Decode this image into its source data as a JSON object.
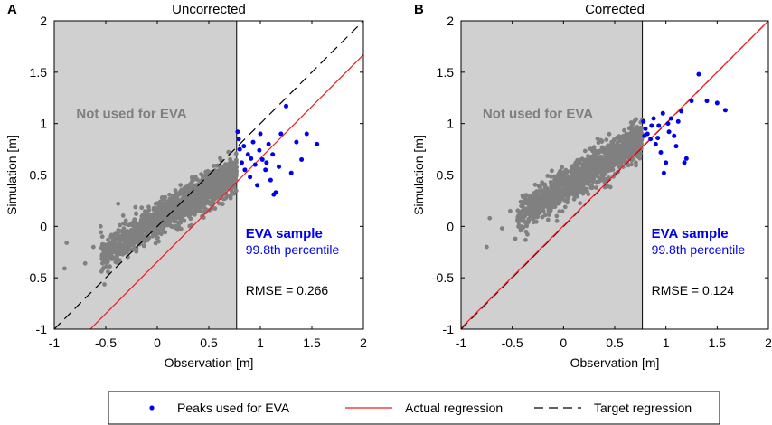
{
  "colors": {
    "scatter": "#808080",
    "peaks": "#0000ee",
    "actual": "#ee1c1c",
    "target": "#000000",
    "shade": "#d0d0d0",
    "eva_text": "#0000ee"
  },
  "legend": {
    "peaks_label": "Peaks used for EVA",
    "actual_label": "Actual regression",
    "target_label": "Target regression"
  },
  "chart_data": [
    {
      "type": "scatter",
      "panel_label": "A",
      "title": "Uncorrected",
      "xlabel": "Observation [m]",
      "ylabel": "Simulation [m]",
      "xlim": [
        -1,
        2
      ],
      "ylim": [
        -1,
        2
      ],
      "xticks": [
        "-1",
        "-0.5",
        "0",
        "0.5",
        "1",
        "1.5",
        "2"
      ],
      "yticks": [
        "-1",
        "-0.5",
        "0",
        "0.5",
        "1",
        "1.5",
        "2"
      ],
      "threshold_x": 0.77,
      "region_label": "Not used for EVA",
      "eva_label": "EVA sample",
      "eva_sub": "99.8th percentile",
      "rmse": "RMSE = 0.266",
      "actual_regression": {
        "x": [
          -0.65,
          2.0
        ],
        "y": [
          -1.0,
          1.67
        ]
      },
      "target_regression": {
        "x": [
          -1,
          2
        ],
        "y": [
          -1,
          2
        ]
      },
      "bulk_cloud": {
        "slope": 0.62,
        "intercept": 0.05,
        "x_range": [
          -0.55,
          0.77
        ]
      },
      "scatter_outliers": [
        {
          "x": -0.88,
          "y": -0.16
        },
        {
          "x": -0.9,
          "y": -0.41
        },
        {
          "x": -0.7,
          "y": -0.36
        },
        {
          "x": -0.62,
          "y": -0.2
        },
        {
          "x": -0.55,
          "y": 0.0
        },
        {
          "x": -0.5,
          "y": -0.28
        },
        {
          "x": -0.45,
          "y": -0.1
        },
        {
          "x": -0.38,
          "y": 0.22
        }
      ],
      "peaks": [
        {
          "x": 0.78,
          "y": 0.92
        },
        {
          "x": 0.8,
          "y": 0.75
        },
        {
          "x": 0.82,
          "y": 0.62
        },
        {
          "x": 0.85,
          "y": 0.55
        },
        {
          "x": 0.88,
          "y": 0.7
        },
        {
          "x": 0.9,
          "y": 0.48
        },
        {
          "x": 0.93,
          "y": 0.82
        },
        {
          "x": 0.95,
          "y": 0.6
        },
        {
          "x": 0.97,
          "y": 0.4
        },
        {
          "x": 1.0,
          "y": 0.9
        },
        {
          "x": 1.02,
          "y": 0.65
        },
        {
          "x": 1.05,
          "y": 0.55
        },
        {
          "x": 1.08,
          "y": 0.8
        },
        {
          "x": 1.1,
          "y": 0.45
        },
        {
          "x": 1.12,
          "y": 0.7
        },
        {
          "x": 1.15,
          "y": 0.33
        },
        {
          "x": 1.2,
          "y": 0.9
        },
        {
          "x": 1.25,
          "y": 1.17
        },
        {
          "x": 1.3,
          "y": 0.52
        },
        {
          "x": 1.35,
          "y": 0.82
        },
        {
          "x": 1.4,
          "y": 0.65
        },
        {
          "x": 1.45,
          "y": 0.9
        },
        {
          "x": 1.55,
          "y": 0.8
        },
        {
          "x": 1.18,
          "y": 0.58
        },
        {
          "x": 0.79,
          "y": 0.85
        },
        {
          "x": 0.84,
          "y": 0.78
        },
        {
          "x": 0.91,
          "y": 0.66
        },
        {
          "x": 0.99,
          "y": 0.74
        },
        {
          "x": 1.06,
          "y": 0.62
        },
        {
          "x": 1.13,
          "y": 0.31
        }
      ]
    },
    {
      "type": "scatter",
      "panel_label": "B",
      "title": "Corrected",
      "xlabel": "Observation [m]",
      "ylabel": "Simulation [m]",
      "xlim": [
        -1,
        2
      ],
      "ylim": [
        -1,
        2
      ],
      "xticks": [
        "-1",
        "-0.5",
        "0",
        "0.5",
        "1",
        "1.5",
        "2"
      ],
      "yticks": [
        "-1",
        "-0.5",
        "0",
        "0.5",
        "1",
        "1.5",
        "2"
      ],
      "threshold_x": 0.77,
      "region_label": "Not used for EVA",
      "eva_label": "EVA sample",
      "eva_sub": "99.8th percentile",
      "rmse": "RMSE = 0.124",
      "actual_regression": {
        "x": [
          -1,
          2
        ],
        "y": [
          -0.99,
          2.0
        ]
      },
      "target_regression": {
        "x": [
          -1,
          2
        ],
        "y": [
          -1,
          2
        ]
      },
      "bulk_cloud": {
        "slope": 0.62,
        "intercept": 0.38,
        "x_range": [
          -0.45,
          0.77
        ]
      },
      "scatter_outliers": [
        {
          "x": -0.75,
          "y": -0.2
        },
        {
          "x": -0.72,
          "y": 0.08
        },
        {
          "x": -0.6,
          "y": -0.02
        },
        {
          "x": -0.52,
          "y": 0.15
        },
        {
          "x": -0.47,
          "y": -0.12
        },
        {
          "x": -0.4,
          "y": 0.3
        }
      ],
      "peaks": [
        {
          "x": 0.78,
          "y": 1.02
        },
        {
          "x": 0.8,
          "y": 0.95
        },
        {
          "x": 0.82,
          "y": 0.9
        },
        {
          "x": 0.85,
          "y": 0.85
        },
        {
          "x": 0.88,
          "y": 1.05
        },
        {
          "x": 0.9,
          "y": 0.8
        },
        {
          "x": 0.93,
          "y": 0.98
        },
        {
          "x": 0.95,
          "y": 0.72
        },
        {
          "x": 0.97,
          "y": 1.1
        },
        {
          "x": 1.0,
          "y": 0.62
        },
        {
          "x": 1.02,
          "y": 1.0
        },
        {
          "x": 1.05,
          "y": 1.05
        },
        {
          "x": 1.08,
          "y": 0.88
        },
        {
          "x": 1.1,
          "y": 0.78
        },
        {
          "x": 1.15,
          "y": 1.12
        },
        {
          "x": 1.2,
          "y": 0.66
        },
        {
          "x": 1.25,
          "y": 1.22
        },
        {
          "x": 1.32,
          "y": 1.48
        },
        {
          "x": 1.4,
          "y": 1.22
        },
        {
          "x": 1.5,
          "y": 1.2
        },
        {
          "x": 1.58,
          "y": 1.13
        },
        {
          "x": 0.98,
          "y": 0.52
        },
        {
          "x": 0.79,
          "y": 0.88
        },
        {
          "x": 0.86,
          "y": 0.98
        },
        {
          "x": 0.92,
          "y": 0.86
        },
        {
          "x": 1.03,
          "y": 0.92
        },
        {
          "x": 1.12,
          "y": 1.02
        },
        {
          "x": 1.18,
          "y": 0.62
        }
      ]
    }
  ]
}
